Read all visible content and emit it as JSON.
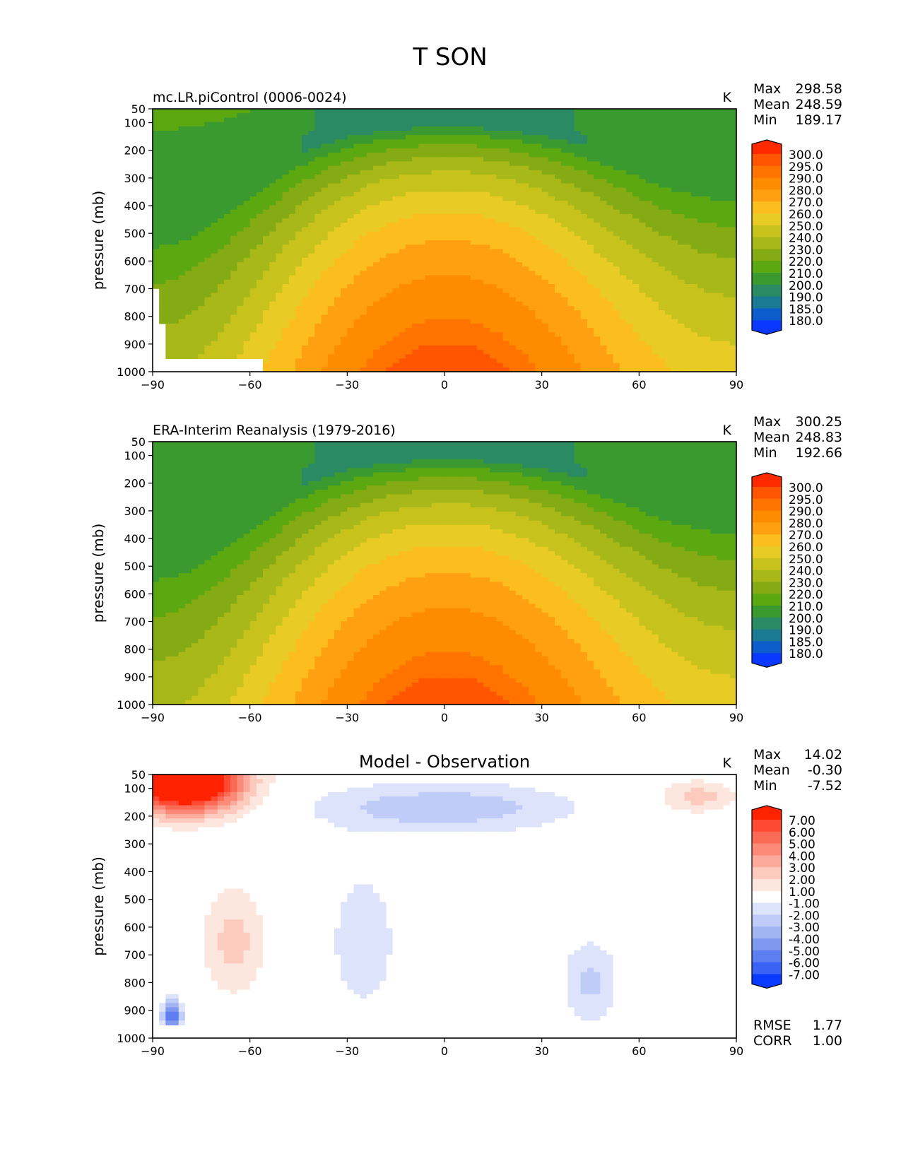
{
  "title": "T SON",
  "chart_data": [
    {
      "type": "contour",
      "subtitle": "mc.LR.piControl (0006-0024)",
      "units": "K",
      "xlabel": "",
      "ylabel": "pressure (mb)",
      "xlim": [
        -90,
        90
      ],
      "ylim": [
        1000,
        50
      ],
      "xticks": [
        "−90",
        "−60",
        "−30",
        "0",
        "30",
        "60",
        "90"
      ],
      "yticks": [
        "50",
        "100",
        "200",
        "300",
        "400",
        "500",
        "600",
        "700",
        "800",
        "900",
        "1000"
      ],
      "stats": [
        {
          "label": "Max",
          "value": "298.58"
        },
        {
          "label": "Mean",
          "value": "248.59"
        },
        {
          "label": "Min",
          "value": "189.17"
        }
      ],
      "colorbar": {
        "levels": [
          "300.0",
          "295.0",
          "290.0",
          "280.0",
          "270.0",
          "260.0",
          "250.0",
          "240.0",
          "230.0",
          "220.0",
          "210.0",
          "200.0",
          "190.0",
          "185.0",
          "180.0"
        ],
        "colors": [
          "#ff2a00",
          "#ff5500",
          "#ff7300",
          "#ff8c00",
          "#ffa010",
          "#fcbe1e",
          "#e8cb24",
          "#c8c21c",
          "#a8b818",
          "#84aa14",
          "#5ca810",
          "#3a9a30",
          "#2a8a64",
          "#1a7a94",
          "#0d5ccc",
          "#0a38ff"
        ]
      },
      "field": {
        "tmin": 189.17,
        "tmax": 298.58,
        "tmean": 248.59
      }
    },
    {
      "type": "contour",
      "subtitle": "ERA-Interim Reanalysis (1979-2016)",
      "units": "K",
      "xlabel": "",
      "ylabel": "pressure (mb)",
      "xlim": [
        -90,
        90
      ],
      "ylim": [
        1000,
        50
      ],
      "xticks": [
        "−90",
        "−60",
        "−30",
        "0",
        "30",
        "60",
        "90"
      ],
      "yticks": [
        "50",
        "100",
        "200",
        "300",
        "400",
        "500",
        "600",
        "700",
        "800",
        "900",
        "1000"
      ],
      "stats": [
        {
          "label": "Max",
          "value": "300.25"
        },
        {
          "label": "Mean",
          "value": "248.83"
        },
        {
          "label": "Min",
          "value": "192.66"
        }
      ],
      "colorbar": {
        "levels": [
          "300.0",
          "295.0",
          "290.0",
          "280.0",
          "270.0",
          "260.0",
          "250.0",
          "240.0",
          "230.0",
          "220.0",
          "210.0",
          "200.0",
          "190.0",
          "185.0",
          "180.0"
        ],
        "colors": [
          "#ff2a00",
          "#ff5500",
          "#ff7300",
          "#ff8c00",
          "#ffa010",
          "#fcbe1e",
          "#e8cb24",
          "#c8c21c",
          "#a8b818",
          "#84aa14",
          "#5ca810",
          "#3a9a30",
          "#2a8a64",
          "#1a7a94",
          "#0d5ccc",
          "#0a38ff"
        ]
      },
      "field": {
        "tmin": 192.66,
        "tmax": 300.25,
        "tmean": 248.83
      }
    },
    {
      "type": "contour",
      "subtitle": "Model - Observation",
      "units": "K",
      "xlabel": "",
      "ylabel": "pressure (mb)",
      "xlim": [
        -90,
        90
      ],
      "ylim": [
        1000,
        50
      ],
      "xticks": [
        "−90",
        "−60",
        "−30",
        "0",
        "30",
        "60",
        "90"
      ],
      "yticks": [
        "50",
        "100",
        "200",
        "300",
        "400",
        "500",
        "600",
        "700",
        "800",
        "900",
        "1000"
      ],
      "stats": [
        {
          "label": "Max",
          "value": "14.02"
        },
        {
          "label": "Mean",
          "value": "-0.30"
        },
        {
          "label": "Min",
          "value": "-7.52"
        }
      ],
      "extra_stats": [
        {
          "label": "RMSE",
          "value": "1.77"
        },
        {
          "label": "CORR",
          "value": "1.00"
        }
      ],
      "colorbar": {
        "levels": [
          "7.00",
          "6.00",
          "5.00",
          "4.00",
          "3.00",
          "2.00",
          "1.00",
          "-1.00",
          "-2.00",
          "-3.00",
          "-4.00",
          "-5.00",
          "-6.00",
          "-7.00"
        ],
        "colors": [
          "#ff2200",
          "#ff4a33",
          "#fb6a55",
          "#fb8a78",
          "#fcaa9c",
          "#fdcabe",
          "#fde6de",
          "#ffffff",
          "#dde3fb",
          "#c0ccf8",
          "#a3b4f4",
          "#8099f0",
          "#5c7ef0",
          "#3a62f4",
          "#0a3aff"
        ]
      },
      "field": {
        "tmin": -7.52,
        "tmax": 14.02,
        "tmean": -0.3
      }
    }
  ]
}
